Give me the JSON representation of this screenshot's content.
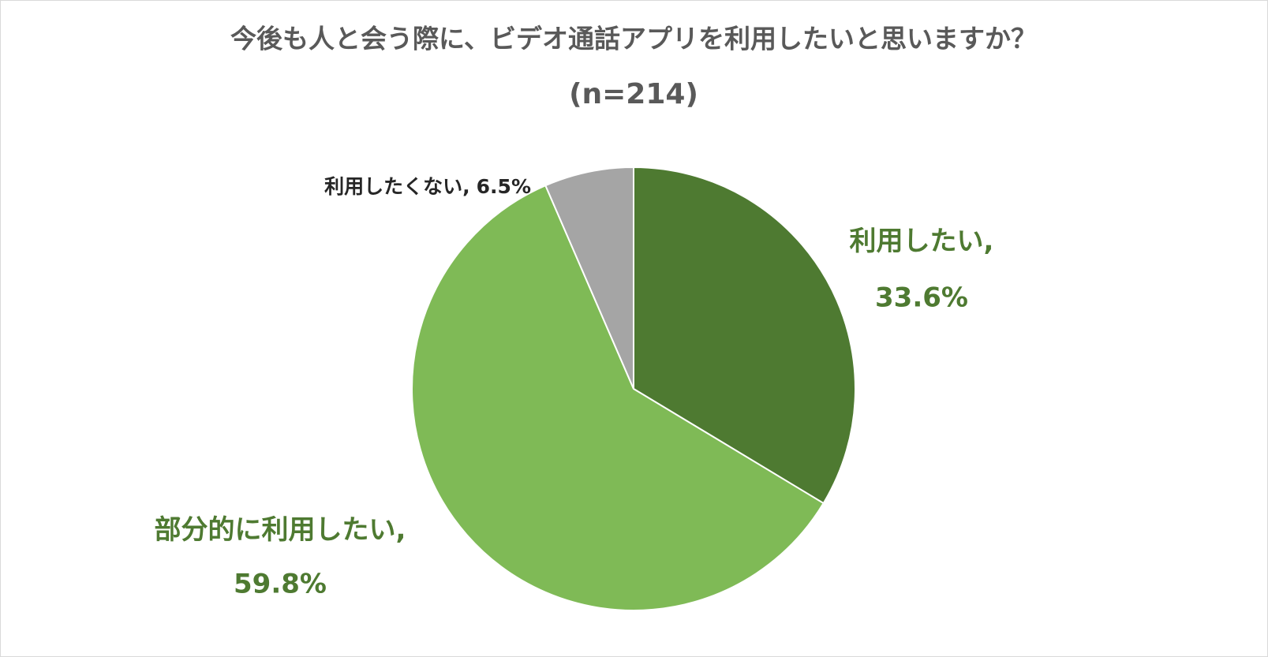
{
  "chart_data": {
    "type": "pie",
    "title": "今後も人と会う際に、ビデオ通話アプリを利用したいと思いますか？",
    "subtitle": "(n=214)",
    "categories": [
      "利用したい",
      "部分的に利用したい",
      "利用したくない"
    ],
    "values": [
      33.6,
      59.8,
      6.5
    ],
    "value_labels": [
      "33.6%",
      "59.8%",
      "6.5%"
    ],
    "label_separator": ",",
    "colors": [
      "#4e7a31",
      "#7fba56",
      "#a5a5a5"
    ]
  }
}
